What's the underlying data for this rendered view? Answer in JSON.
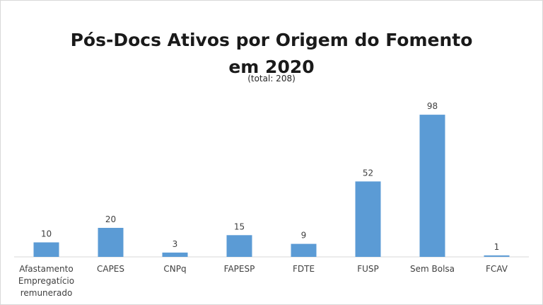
{
  "chart_data": {
    "type": "bar",
    "title_line1": "Pós-Docs Ativos por Origem do Fomento",
    "title_line2": "em 2020",
    "subtitle": "(total: 208)",
    "categories": [
      "Afastamento Empregatício remunerado",
      "CAPES",
      "CNPq",
      "FAPESP",
      "FDTE",
      "FUSP",
      "Sem Bolsa",
      "FCAV"
    ],
    "values": [
      10,
      20,
      3,
      15,
      9,
      52,
      98,
      1
    ],
    "data_labels": [
      "10",
      "20",
      "3",
      "15",
      "9",
      "52",
      "98",
      "1"
    ],
    "xlabel": "",
    "ylabel": "",
    "ylim": [
      0,
      100
    ],
    "grid": false,
    "legend": "none",
    "bar_color": "#5b9bd5",
    "baseline_color": "#d9d9d9"
  }
}
